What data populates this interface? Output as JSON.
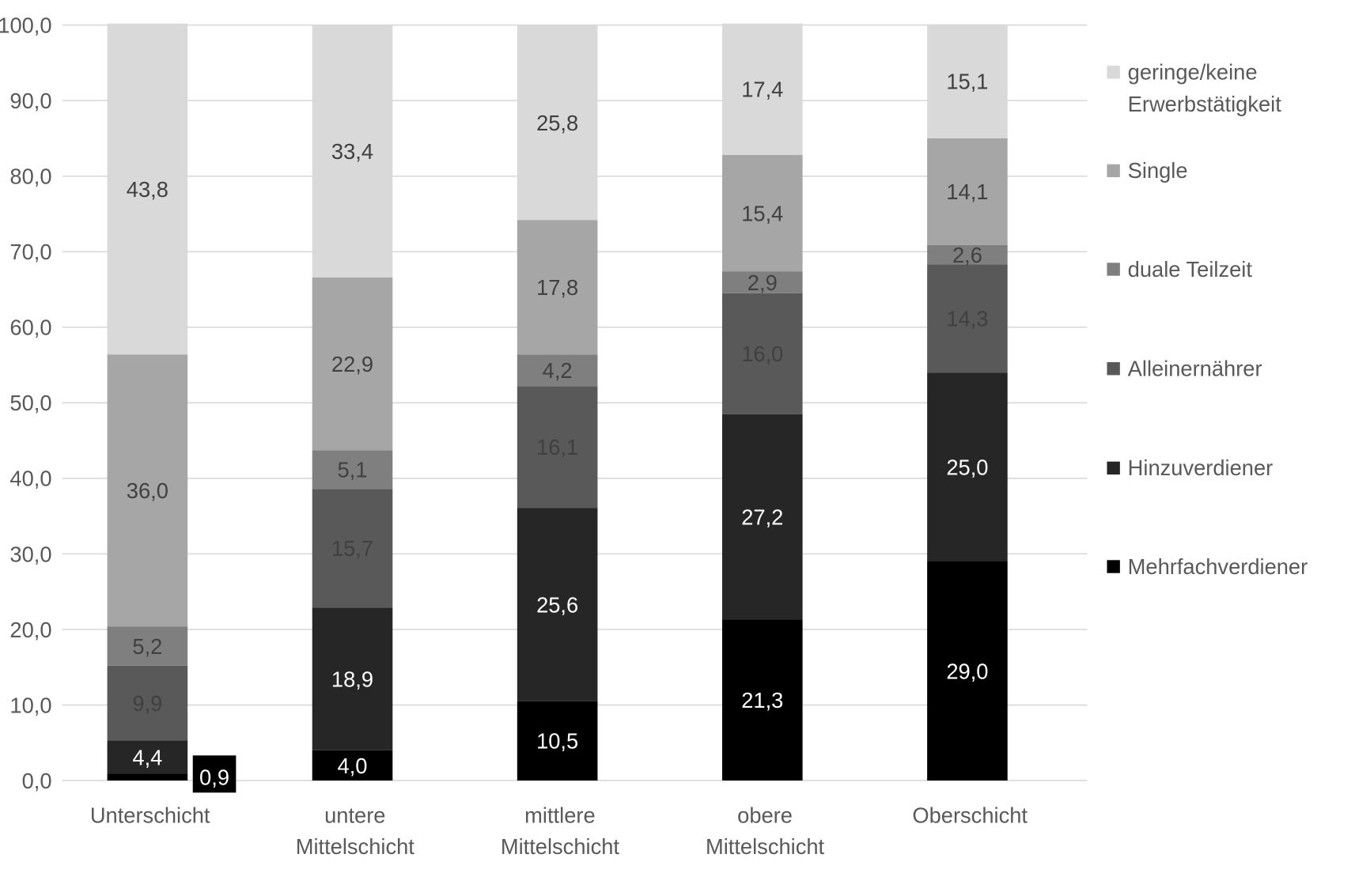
{
  "chart_data": {
    "type": "bar",
    "stacked": true,
    "categories": [
      [
        "Unterschicht"
      ],
      [
        "untere",
        "Mittelschicht"
      ],
      [
        "mittlere",
        "Mittelschicht"
      ],
      [
        "obere",
        "Mittelschicht"
      ],
      [
        "Oberschicht"
      ]
    ],
    "ylim": [
      0,
      100
    ],
    "yticks": [
      "0,0",
      "10,0",
      "20,0",
      "30,0",
      "40,0",
      "50,0",
      "60,0",
      "70,0",
      "80,0",
      "90,0",
      "100,0"
    ],
    "grid": true,
    "legend_position": "right",
    "series": [
      {
        "name": "Mehrfachverdiener",
        "color": "#000000",
        "label_color": "#ffffff",
        "values": [
          0.9,
          4.0,
          10.5,
          21.3,
          29.0
        ],
        "labels": [
          "0,9",
          "4,0",
          "10,5",
          "21,3",
          "29,0"
        ]
      },
      {
        "name": "Hinzuverdiener",
        "color": "#262626",
        "label_color": "#ffffff",
        "values": [
          4.4,
          18.9,
          25.6,
          27.2,
          25.0
        ],
        "labels": [
          "4,4",
          "18,9",
          "25,6",
          "27,2",
          "25,0"
        ]
      },
      {
        "name": "Alleinernährer",
        "color": "#595959",
        "label_color": "#404040",
        "values": [
          9.9,
          15.7,
          16.1,
          16.0,
          14.3
        ],
        "labels": [
          "9,9",
          "15,7",
          "16,1",
          "16,0",
          "14,3"
        ]
      },
      {
        "name": "duale Teilzeit",
        "color": "#7f7f7f",
        "label_color": "#404040",
        "values": [
          5.2,
          5.1,
          4.2,
          2.9,
          2.6
        ],
        "labels": [
          "5,2",
          "5,1",
          "4,2",
          "2,9",
          "2,6"
        ]
      },
      {
        "name": "Single",
        "color": "#a6a6a6",
        "label_color": "#404040",
        "values": [
          36.0,
          22.9,
          17.8,
          15.4,
          14.1
        ],
        "labels": [
          "36,0",
          "22,9",
          "17,8",
          "15,4",
          "14,1"
        ]
      },
      {
        "name": "geringe/keine Erwerbstätigkeit",
        "legend_lines": [
          "geringe/keine",
          "Erwerbstätigkeit"
        ],
        "color": "#d9d9d9",
        "label_color": "#404040",
        "values": [
          43.8,
          33.4,
          25.8,
          17.4,
          15.1
        ],
        "labels": [
          "43,8",
          "33,4",
          "25,8",
          "17,4",
          "15,1"
        ]
      }
    ]
  }
}
